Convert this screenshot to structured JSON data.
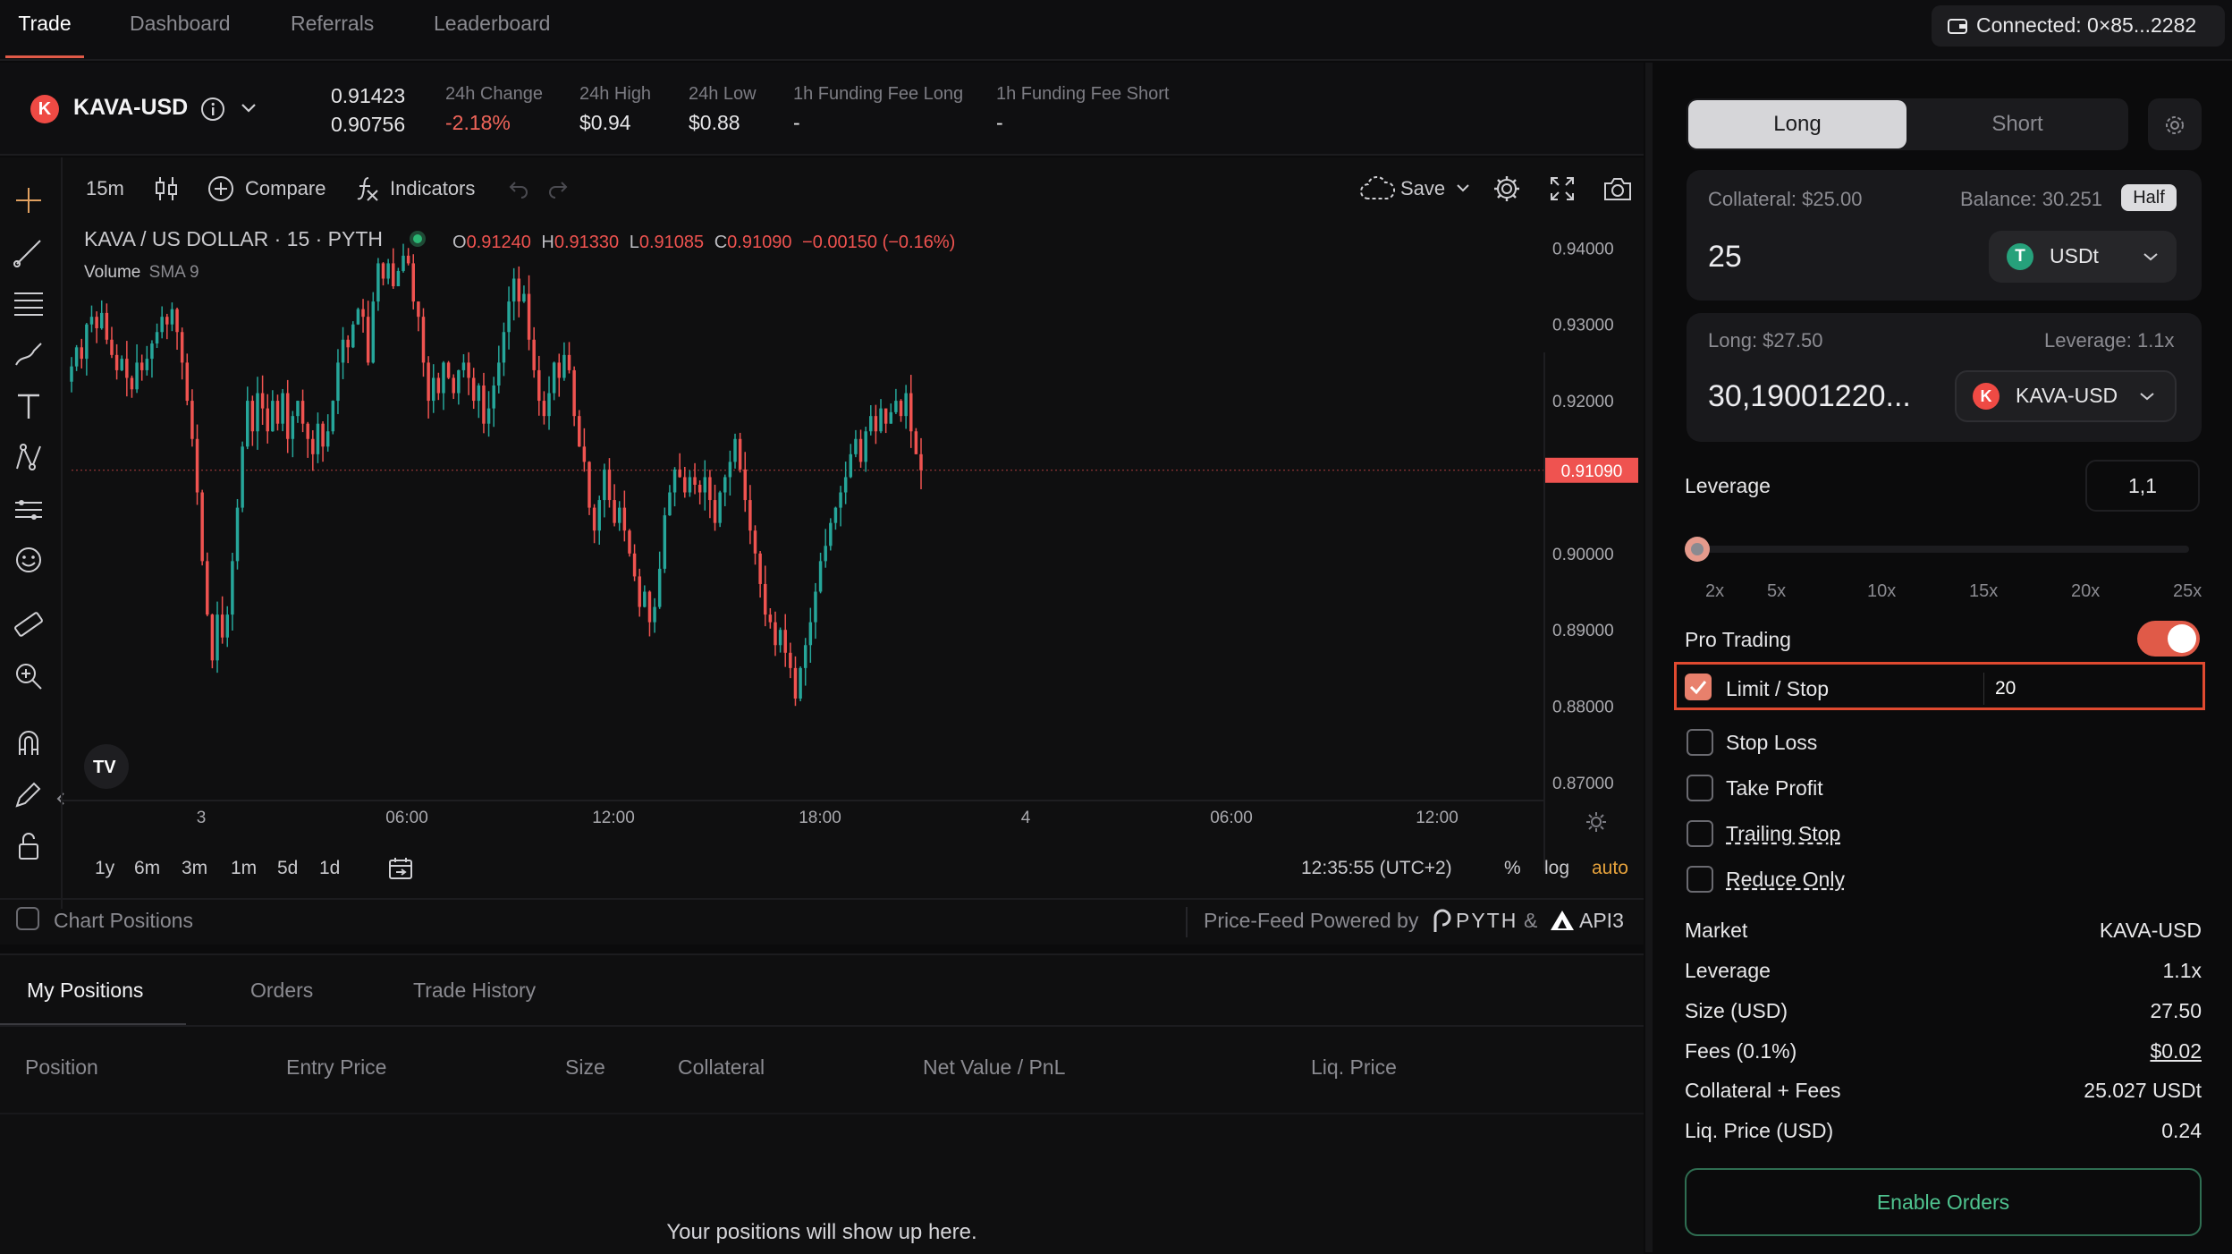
{
  "nav": {
    "tabs": [
      "Trade",
      "Dashboard",
      "Referrals",
      "Leaderboard"
    ],
    "active": "Trade",
    "wallet": "Connected: 0×85...2282"
  },
  "market": {
    "symbol": "KAVA-USD",
    "price_top": "0.91423",
    "price_bottom": "0.90756",
    "stats": [
      {
        "label": "24h Change",
        "value": "-2.18%"
      },
      {
        "label": "24h High",
        "value": "$0.94"
      },
      {
        "label": "24h Low",
        "value": "$0.88"
      },
      {
        "label": "1h Funding Fee Long",
        "value": "-"
      },
      {
        "label": "1h Funding Fee Short",
        "value": "-"
      }
    ]
  },
  "chart_toolbar": {
    "interval": "15m",
    "compare": "Compare",
    "indicators": "Indicators",
    "save": "Save"
  },
  "chart_legend": {
    "title": "KAVA / US DOLLAR · 15 · PYTH",
    "o_label": "O",
    "o": "0.91240",
    "h_label": "H",
    "h": "0.91330",
    "l_label": "L",
    "l": "0.91085",
    "c_label": "C",
    "c": "0.91090",
    "change": "−0.00150 (−0.16%)",
    "volume": "Volume",
    "sma": "SMA 9"
  },
  "chart_data": {
    "type": "candlestick",
    "title": "KAVA / US DOLLAR · 15 · PYTH",
    "ylim": [
      0.868,
      0.9425
    ],
    "y_ticks": [
      "0.94000",
      "0.93000",
      "0.92000",
      "0.90000",
      "0.89000",
      "0.88000",
      "0.87000"
    ],
    "y_tick_values": [
      0.94,
      0.93,
      0.92,
      0.9,
      0.89,
      0.88,
      0.87
    ],
    "x_ticks": [
      "3",
      "06:00",
      "12:00",
      "18:00",
      "4",
      "06:00",
      "12:00"
    ],
    "last_price_label": "0.91090",
    "last_price": 0.9109,
    "up_color": "#26a69a",
    "down_color": "#ef5350",
    "closes": [
      0.9245,
      0.927,
      0.9255,
      0.93,
      0.931,
      0.9295,
      0.9315,
      0.928,
      0.926,
      0.924,
      0.9255,
      0.923,
      0.9215,
      0.925,
      0.924,
      0.9255,
      0.9275,
      0.929,
      0.931,
      0.93,
      0.932,
      0.929,
      0.925,
      0.92,
      0.915,
      0.908,
      0.899,
      0.892,
      0.886,
      0.892,
      0.889,
      0.892,
      0.899,
      0.906,
      0.914,
      0.92,
      0.916,
      0.921,
      0.919,
      0.916,
      0.92,
      0.917,
      0.921,
      0.915,
      0.918,
      0.92,
      0.917,
      0.915,
      0.913,
      0.917,
      0.914,
      0.916,
      0.92,
      0.925,
      0.928,
      0.927,
      0.93,
      0.932,
      0.931,
      0.925,
      0.933,
      0.938,
      0.936,
      0.938,
      0.935,
      0.937,
      0.939,
      0.938,
      0.933,
      0.931,
      0.925,
      0.92,
      0.923,
      0.921,
      0.925,
      0.923,
      0.921,
      0.924,
      0.925,
      0.923,
      0.92,
      0.922,
      0.917,
      0.919,
      0.922,
      0.925,
      0.929,
      0.933,
      0.936,
      0.933,
      0.934,
      0.928,
      0.924,
      0.92,
      0.918,
      0.921,
      0.925,
      0.923,
      0.926,
      0.924,
      0.918,
      0.914,
      0.912,
      0.906,
      0.903,
      0.907,
      0.911,
      0.907,
      0.904,
      0.906,
      0.903,
      0.9,
      0.897,
      0.893,
      0.895,
      0.891,
      0.893,
      0.898,
      0.905,
      0.908,
      0.911,
      0.91,
      0.908,
      0.91,
      0.909,
      0.908,
      0.91,
      0.907,
      0.904,
      0.908,
      0.91,
      0.912,
      0.915,
      0.911,
      0.907,
      0.903,
      0.9,
      0.896,
      0.892,
      0.891,
      0.888,
      0.89,
      0.887,
      0.885,
      0.881,
      0.885,
      0.888,
      0.891,
      0.895,
      0.899,
      0.901,
      0.904,
      0.906,
      0.908,
      0.91,
      0.913,
      0.915,
      0.912,
      0.916,
      0.918,
      0.916,
      0.919,
      0.917,
      0.9185,
      0.92,
      0.918,
      0.921,
      0.916,
      0.913,
      0.9109
    ],
    "volume_label": "Volume SMA 9",
    "range_buttons": [
      "1y",
      "6m",
      "3m",
      "1m",
      "5d",
      "1d"
    ],
    "time": "12:35:55 (UTC+2)",
    "scale_options": [
      "%",
      "log",
      "auto"
    ]
  },
  "chart_footer": {
    "chart_positions": "Chart Positions",
    "powered": "Price-Feed Powered by",
    "pyth": "PYTH",
    "amp": "&",
    "api3": "API3"
  },
  "panel": {
    "long": "Long",
    "short": "Short",
    "collateral_label": "Collateral: $25.00",
    "balance_label": "Balance: 30.251",
    "half": "Half",
    "collateral_value": "25",
    "collateral_token": "USDt",
    "long_label": "Long: $27.50",
    "leverage_label": "Leverage: 1.1x",
    "long_value": "30,19001220...",
    "long_token": "KAVA-USD",
    "leverage_title": "Leverage",
    "leverage_value": "1,1",
    "leverage_fraction": 0.004,
    "leverage_ticks": [
      "2x",
      "5x",
      "10x",
      "15x",
      "20x",
      "25x"
    ],
    "pro_trading": "Pro Trading",
    "pro_trading_on": true,
    "limit_stop": "Limit / Stop",
    "limit_value": "20",
    "stop_loss": "Stop Loss",
    "take_profit": "Take Profit",
    "trailing_stop": "Trailing Stop",
    "reduce_only": "Reduce Only",
    "summary": [
      {
        "label": "Market",
        "value": "KAVA-USD"
      },
      {
        "label": "Leverage",
        "value": "1.1x"
      },
      {
        "label": "Size (USD)",
        "value": "27.50"
      },
      {
        "label": "Fees (0.1%)",
        "value": "$0.02"
      },
      {
        "label": "Collateral + Fees",
        "value": "25.027 USDt"
      },
      {
        "label": "Liq. Price (USD)",
        "value": "0.24"
      }
    ],
    "enable_orders": "Enable Orders"
  },
  "bottom": {
    "tabs": [
      "My Positions",
      "Orders",
      "Trade History"
    ],
    "columns": [
      "Position",
      "Entry Price",
      "Size",
      "Collateral",
      "Net Value / PnL",
      "Liq. Price"
    ],
    "empty": "Your positions will show up here."
  },
  "colors": {
    "accent": "#e05a48",
    "negative": "#f0655a",
    "enable": "#4fc38f"
  }
}
